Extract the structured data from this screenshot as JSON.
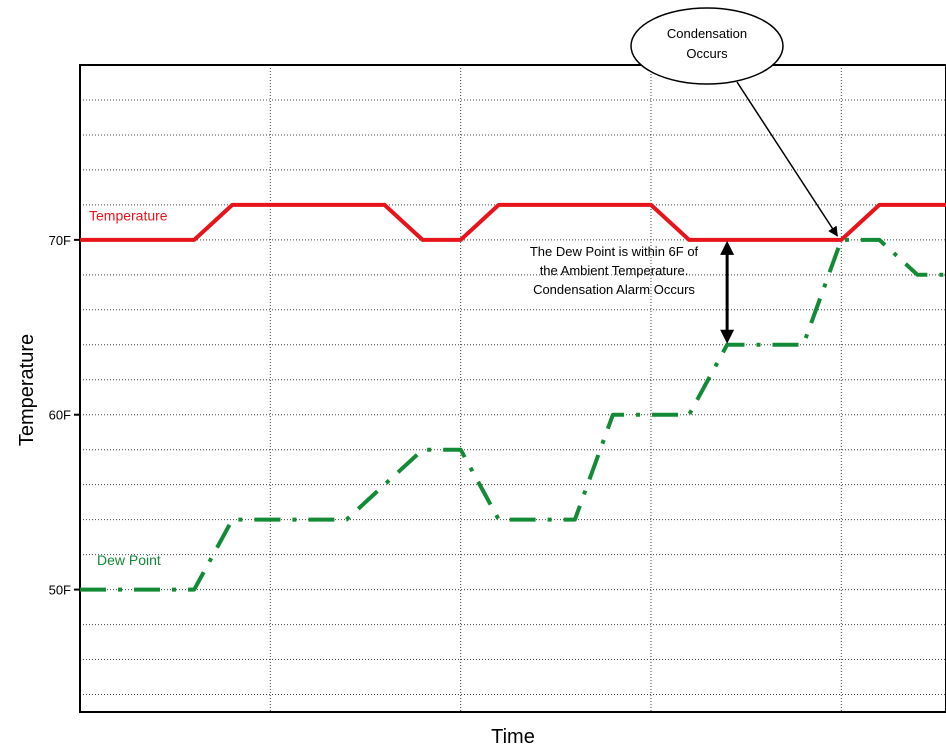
{
  "chart_data": {
    "type": "line",
    "xlabel": "Time",
    "ylabel": "Temperature",
    "y_ticks": [
      {
        "value": 50,
        "label": "50F"
      },
      {
        "value": 60,
        "label": "60F"
      },
      {
        "value": 70,
        "label": "70F"
      }
    ],
    "ylim": [
      43,
      80
    ],
    "xlim": [
      0,
      45.5
    ],
    "grid": true,
    "series": [
      {
        "name": "Temperature",
        "color": "#e8141b",
        "style": "solid",
        "x": [
          0,
          6,
          8,
          16,
          18,
          20,
          22,
          30,
          32,
          40,
          42,
          45.5
        ],
        "y": [
          70,
          70,
          72,
          72,
          70,
          70,
          72,
          72,
          70,
          70,
          72,
          72
        ]
      },
      {
        "name": "Dew Point",
        "color": "#138a36",
        "style": "dashed",
        "x": [
          0,
          6,
          8,
          14,
          18,
          20,
          22,
          26,
          28,
          32,
          34,
          38,
          40,
          42,
          44,
          45.5
        ],
        "y": [
          50,
          50,
          54,
          54,
          58,
          58,
          54,
          54,
          60,
          60,
          64,
          64,
          70,
          70,
          68,
          68
        ]
      }
    ],
    "annotations": {
      "callout_text": [
        "Condensation",
        "Occurs"
      ],
      "dew_note": [
        "The Dew Point is within 6F of",
        "the Ambient Temperature.",
        "Condensation Alarm Occurs"
      ],
      "arrow_x": 34,
      "arrow_top": 70,
      "arrow_bottom": 64,
      "callout_target_x": 40,
      "callout_target_y": 70
    }
  }
}
